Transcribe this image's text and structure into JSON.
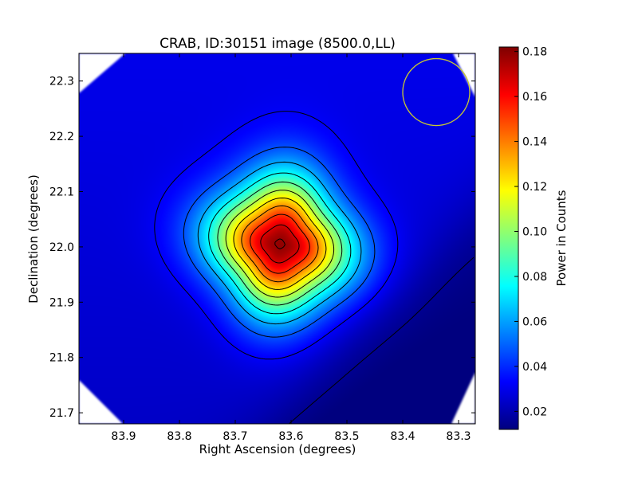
{
  "chart_data": {
    "type": "heatmap",
    "title": "CRAB, ID:30151 image (8500.0,LL)",
    "xlabel": "Right Ascension (degrees)",
    "ylabel": "Declination (degrees)",
    "xlim": [
      83.98,
      83.27
    ],
    "ylim": [
      21.68,
      22.35
    ],
    "x_ticks": [
      83.9,
      83.8,
      83.7,
      83.6,
      83.5,
      83.4,
      83.3
    ],
    "x_tick_labels": [
      "83.9",
      "83.8",
      "83.7",
      "83.6",
      "83.5",
      "83.4",
      "83.3"
    ],
    "y_ticks": [
      21.7,
      21.8,
      21.9,
      22.0,
      22.1,
      22.2,
      22.3
    ],
    "y_tick_labels": [
      "21.7",
      "21.8",
      "21.9",
      "22.0",
      "22.1",
      "22.2",
      "22.3"
    ],
    "peak": {
      "ra": 83.62,
      "dec": 22.005,
      "value": 0.182
    },
    "background_level": 0.03,
    "colormap": "jet",
    "contours": true,
    "beam_circle": {
      "ra": 83.34,
      "dec": 22.28,
      "color": "#c8c832"
    },
    "colorbar": {
      "label": "Power in Counts",
      "range": [
        0.012,
        0.182
      ],
      "ticks": [
        0.02,
        0.04,
        0.06,
        0.08,
        0.1,
        0.12,
        0.14,
        0.16,
        0.18
      ],
      "tick_labels": [
        "0.02",
        "0.04",
        "0.06",
        "0.08",
        "0.10",
        "0.12",
        "0.14",
        "0.16",
        "0.18"
      ]
    }
  }
}
